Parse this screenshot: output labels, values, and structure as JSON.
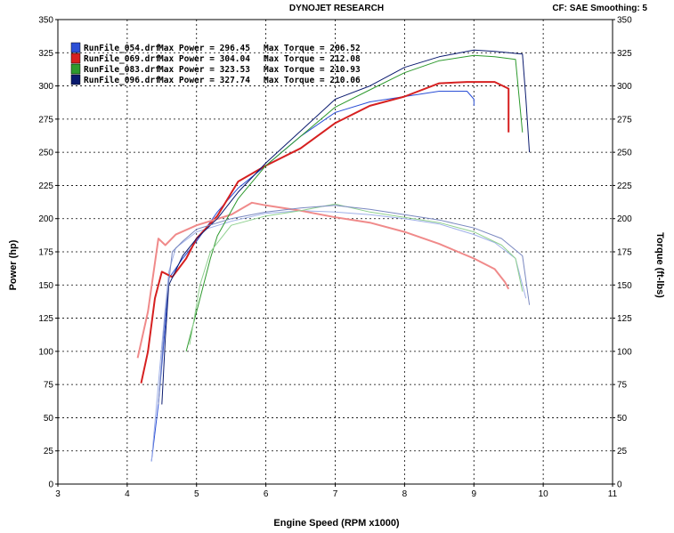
{
  "header": {
    "title": "DYNOJET RESEARCH",
    "right_info": "CF: SAE  Smoothing: 5"
  },
  "chart_data": {
    "type": "line",
    "title": "DYNOJET RESEARCH",
    "xlabel": "Engine Speed (RPM x1000)",
    "ylabel_left": "Power (hp)",
    "ylabel_right": "Torque (ft-lbs)",
    "xlim": [
      3,
      11
    ],
    "ylim_left": [
      0,
      350
    ],
    "ylim_right": [
      0,
      350
    ],
    "x_ticks": [
      "3",
      "4",
      "5",
      "6",
      "7",
      "8",
      "9",
      "10",
      "11"
    ],
    "y_ticks_left": [
      "0",
      "25",
      "50",
      "75",
      "100",
      "125",
      "150",
      "175",
      "200",
      "225",
      "250",
      "275",
      "300",
      "325",
      "350"
    ],
    "y_ticks_right": [
      "0",
      "25",
      "50",
      "75",
      "100",
      "125",
      "150",
      "175",
      "200",
      "225",
      "250",
      "275",
      "300",
      "325",
      "350"
    ],
    "grid": true,
    "legend_position": "top-left",
    "legend": [
      {
        "file": "RunFile_054.drf",
        "power_text": "Max Power = 296.45",
        "torque_text": "Max Torque = 206.52",
        "color": "#2b4fd6"
      },
      {
        "file": "RunFile_069.drf",
        "power_text": "Max Power = 304.04",
        "torque_text": "Max Torque = 212.08",
        "color": "#d62020"
      },
      {
        "file": "RunFile_083.drf",
        "power_text": "Max Power = 323.53",
        "torque_text": "Max Torque = 210.93",
        "color": "#2e9a2e"
      },
      {
        "file": "RunFile_096.drf",
        "power_text": "Max Power = 327.74",
        "torque_text": "Max Torque = 210.06",
        "color": "#0a1a6e"
      }
    ],
    "series": [
      {
        "name": "RunFile_054.drf Power",
        "color": "#2b4fd6",
        "width": 1,
        "points": [
          [
            4.35,
            17
          ],
          [
            4.45,
            60
          ],
          [
            4.55,
            120
          ],
          [
            4.6,
            155
          ],
          [
            4.8,
            170
          ],
          [
            5.0,
            183
          ],
          [
            5.3,
            205
          ],
          [
            5.6,
            223
          ],
          [
            6.0,
            240
          ],
          [
            6.5,
            262
          ],
          [
            7.0,
            280
          ],
          [
            7.5,
            288
          ],
          [
            8.0,
            292
          ],
          [
            8.5,
            296
          ],
          [
            8.9,
            296
          ],
          [
            9.0,
            290
          ],
          [
            9.0,
            285
          ]
        ]
      },
      {
        "name": "RunFile_054.drf Torque",
        "color": "#9fb0e8",
        "width": 1,
        "points": [
          [
            4.35,
            17
          ],
          [
            4.5,
            105
          ],
          [
            4.6,
            160
          ],
          [
            4.7,
            178
          ],
          [
            5.0,
            190
          ],
          [
            5.5,
            198
          ],
          [
            6.0,
            204
          ],
          [
            6.5,
            206
          ],
          [
            7.0,
            205
          ],
          [
            7.5,
            203
          ],
          [
            8.0,
            200
          ],
          [
            8.5,
            196
          ],
          [
            9.0,
            188
          ],
          [
            9.3,
            182
          ],
          [
            9.6,
            170
          ],
          [
            9.75,
            140
          ]
        ]
      },
      {
        "name": "RunFile_069.drf Power",
        "color": "#d62020",
        "width": 2,
        "points": [
          [
            4.2,
            76
          ],
          [
            4.3,
            100
          ],
          [
            4.4,
            140
          ],
          [
            4.5,
            160
          ],
          [
            4.65,
            156
          ],
          [
            4.85,
            170
          ],
          [
            5.0,
            185
          ],
          [
            5.3,
            202
          ],
          [
            5.6,
            228
          ],
          [
            6.0,
            240
          ],
          [
            6.5,
            253
          ],
          [
            7.0,
            272
          ],
          [
            7.5,
            285
          ],
          [
            8.0,
            292
          ],
          [
            8.5,
            302
          ],
          [
            8.9,
            303
          ],
          [
            9.3,
            303
          ],
          [
            9.5,
            298
          ],
          [
            9.5,
            265
          ]
        ]
      },
      {
        "name": "RunFile_069.drf Torque",
        "color": "#f08a8a",
        "width": 2,
        "points": [
          [
            4.15,
            95
          ],
          [
            4.3,
            130
          ],
          [
            4.45,
            185
          ],
          [
            4.55,
            180
          ],
          [
            4.7,
            188
          ],
          [
            5.0,
            195
          ],
          [
            5.5,
            203
          ],
          [
            5.8,
            212
          ],
          [
            6.0,
            210
          ],
          [
            6.5,
            206
          ],
          [
            7.0,
            201
          ],
          [
            7.5,
            197
          ],
          [
            8.0,
            190
          ],
          [
            8.5,
            181
          ],
          [
            9.0,
            170
          ],
          [
            9.3,
            162
          ],
          [
            9.45,
            152
          ],
          [
            9.5,
            147
          ]
        ]
      },
      {
        "name": "RunFile_083.drf Power",
        "color": "#2e9a2e",
        "width": 1,
        "points": [
          [
            4.85,
            100
          ],
          [
            5.0,
            130
          ],
          [
            5.2,
            170
          ],
          [
            5.3,
            187
          ],
          [
            5.6,
            215
          ],
          [
            6.0,
            240
          ],
          [
            6.5,
            262
          ],
          [
            7.0,
            284
          ],
          [
            7.5,
            297
          ],
          [
            8.0,
            310
          ],
          [
            8.5,
            319
          ],
          [
            9.0,
            323
          ],
          [
            9.3,
            322
          ],
          [
            9.6,
            320
          ],
          [
            9.7,
            265
          ]
        ]
      },
      {
        "name": "RunFile_083.drf Torque",
        "color": "#8fd08f",
        "width": 1,
        "points": [
          [
            4.9,
            105
          ],
          [
            5.05,
            150
          ],
          [
            5.2,
            175
          ],
          [
            5.5,
            195
          ],
          [
            6.0,
            202
          ],
          [
            6.5,
            206
          ],
          [
            7.0,
            211
          ],
          [
            7.5,
            205
          ],
          [
            8.0,
            201
          ],
          [
            8.5,
            197
          ],
          [
            9.0,
            190
          ],
          [
            9.4,
            180
          ],
          [
            9.6,
            170
          ],
          [
            9.7,
            145
          ]
        ]
      },
      {
        "name": "RunFile_096.drf Power",
        "color": "#0a1a6e",
        "width": 1,
        "points": [
          [
            4.5,
            60
          ],
          [
            4.55,
            110
          ],
          [
            4.6,
            150
          ],
          [
            4.8,
            172
          ],
          [
            5.0,
            185
          ],
          [
            5.3,
            200
          ],
          [
            5.6,
            220
          ],
          [
            6.0,
            242
          ],
          [
            6.5,
            266
          ],
          [
            7.0,
            290
          ],
          [
            7.5,
            300
          ],
          [
            8.0,
            314
          ],
          [
            8.5,
            322
          ],
          [
            9.0,
            327
          ],
          [
            9.3,
            326
          ],
          [
            9.7,
            324
          ],
          [
            9.75,
            290
          ],
          [
            9.8,
            250
          ]
        ]
      },
      {
        "name": "RunFile_096.drf Torque",
        "color": "#7a88c0",
        "width": 1,
        "points": [
          [
            4.45,
            60
          ],
          [
            4.55,
            130
          ],
          [
            4.65,
            175
          ],
          [
            4.8,
            183
          ],
          [
            5.0,
            192
          ],
          [
            5.5,
            200
          ],
          [
            6.0,
            205
          ],
          [
            6.5,
            208
          ],
          [
            7.0,
            210
          ],
          [
            7.5,
            207
          ],
          [
            8.0,
            203
          ],
          [
            8.5,
            199
          ],
          [
            9.0,
            193
          ],
          [
            9.4,
            185
          ],
          [
            9.7,
            172
          ],
          [
            9.8,
            135
          ]
        ]
      }
    ]
  }
}
